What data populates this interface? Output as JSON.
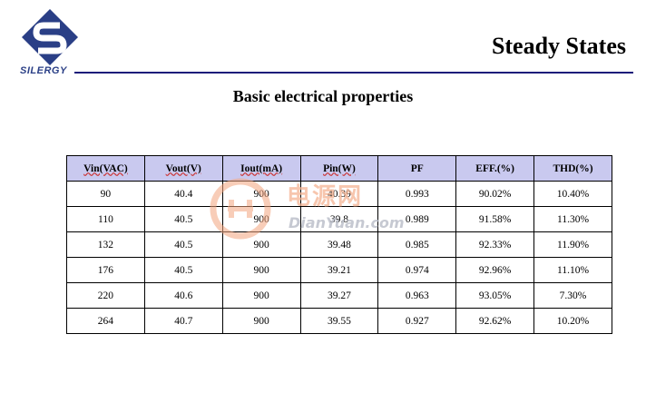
{
  "header": {
    "logo_text": "SILERGY",
    "title": "Steady States",
    "subtitle": "Basic electrical properties"
  },
  "watermark": {
    "chinese": "电源网",
    "english": "DianYuan.com"
  },
  "colors": {
    "header_bg": "#c9c9ef",
    "rule": "#1c1c7a",
    "logo": "#2a3f86"
  },
  "table": {
    "columns": [
      "Vin(VAC)",
      "Vout(V)",
      "Iout(mA)",
      "Pin(W)",
      "PF",
      "EFF.(%)",
      "THD(%)"
    ],
    "rows": [
      [
        "90",
        "40.4",
        "900",
        "40.39",
        "0.993",
        "90.02%",
        "10.40%"
      ],
      [
        "110",
        "40.5",
        "900",
        "39.8",
        "0.989",
        "91.58%",
        "11.30%"
      ],
      [
        "132",
        "40.5",
        "900",
        "39.48",
        "0.985",
        "92.33%",
        "11.90%"
      ],
      [
        "176",
        "40.5",
        "900",
        "39.21",
        "0.974",
        "92.96%",
        "11.10%"
      ],
      [
        "220",
        "40.6",
        "900",
        "39.27",
        "0.963",
        "93.05%",
        "7.30%"
      ],
      [
        "264",
        "40.7",
        "900",
        "39.55",
        "0.927",
        "92.62%",
        "10.20%"
      ]
    ]
  }
}
